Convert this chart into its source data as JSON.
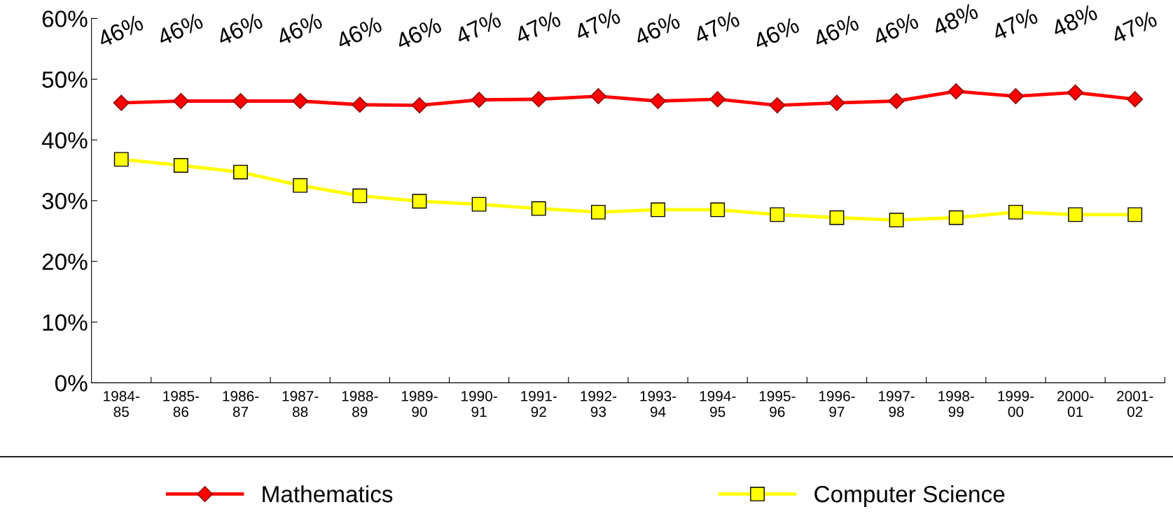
{
  "chart_data": {
    "type": "line",
    "categories": [
      "1984-\n85",
      "1985-\n86",
      "1986-\n87",
      "1987-\n88",
      "1988-\n89",
      "1989-\n90",
      "1990-\n91",
      "1991-\n92",
      "1992-\n93",
      "1993-\n94",
      "1994-\n95",
      "1995-\n96",
      "1996-\n97",
      "1997-\n98",
      "1998-\n99",
      "1999-\n00",
      "2000-\n01",
      "2001-\n02"
    ],
    "series": [
      {
        "name": "Mathematics",
        "color": "#ff0000",
        "marker": "diamond",
        "values": [
          46.1,
          46.4,
          46.4,
          46.4,
          45.8,
          45.7,
          46.6,
          46.7,
          47.2,
          46.4,
          46.7,
          45.7,
          46.1,
          46.4,
          48.0,
          47.2,
          47.8,
          46.7
        ],
        "value_labels": [
          "46%",
          "46%",
          "46%",
          "46%",
          "46%",
          "46%",
          "47%",
          "47%",
          "47%",
          "46%",
          "47%",
          "46%",
          "46%",
          "46%",
          "48%",
          "47%",
          "48%",
          "47%"
        ]
      },
      {
        "name": "Computer Science",
        "color": "#ffff00",
        "marker": "square",
        "values": [
          36.8,
          35.8,
          34.7,
          32.5,
          30.8,
          29.9,
          29.4,
          28.7,
          28.1,
          28.5,
          28.5,
          27.7,
          27.2,
          26.8,
          27.2,
          28.1,
          27.7,
          27.7
        ]
      }
    ],
    "ylim": [
      0,
      60
    ],
    "yticks": [
      {
        "value": 0,
        "label": "0%"
      },
      {
        "value": 10,
        "label": "10%"
      },
      {
        "value": 20,
        "label": "20%"
      },
      {
        "value": 30,
        "label": "30%"
      },
      {
        "value": 40,
        "label": "40%"
      },
      {
        "value": 50,
        "label": "50%"
      },
      {
        "value": 60,
        "label": "60%"
      }
    ],
    "grid": false,
    "legend": "bottom",
    "line_style": "solid"
  }
}
